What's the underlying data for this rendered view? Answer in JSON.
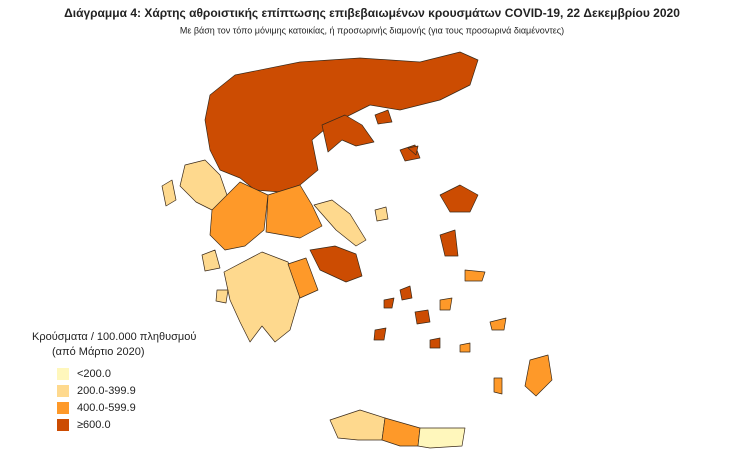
{
  "title": "Διάγραμμα 4: Χάρτης αθροιστικής επίπτωσης επιβεβαιωμένων κρουσμάτων COVID-19, 22 Δεκεμβρίου 2020",
  "subtitle": "Με βάση τον τόπο μόνιμης κατοικίας, ή προσωρινής διαμονής (για τους προσωρινά διαμένοντες)",
  "legend": {
    "title": [
      "Κρούσματα / 100.000 πληθυσμού",
      "(από Μάρτιο 2020)"
    ],
    "items": [
      {
        "label": "<200.0",
        "color": "#fff7bc"
      },
      {
        "label": "200.0-399.9",
        "color": "#fed98e"
      },
      {
        "label": "400.0-599.9",
        "color": "#fe9929"
      },
      {
        "label": "≥600.0",
        "color": "#cc4c02"
      }
    ]
  }
}
